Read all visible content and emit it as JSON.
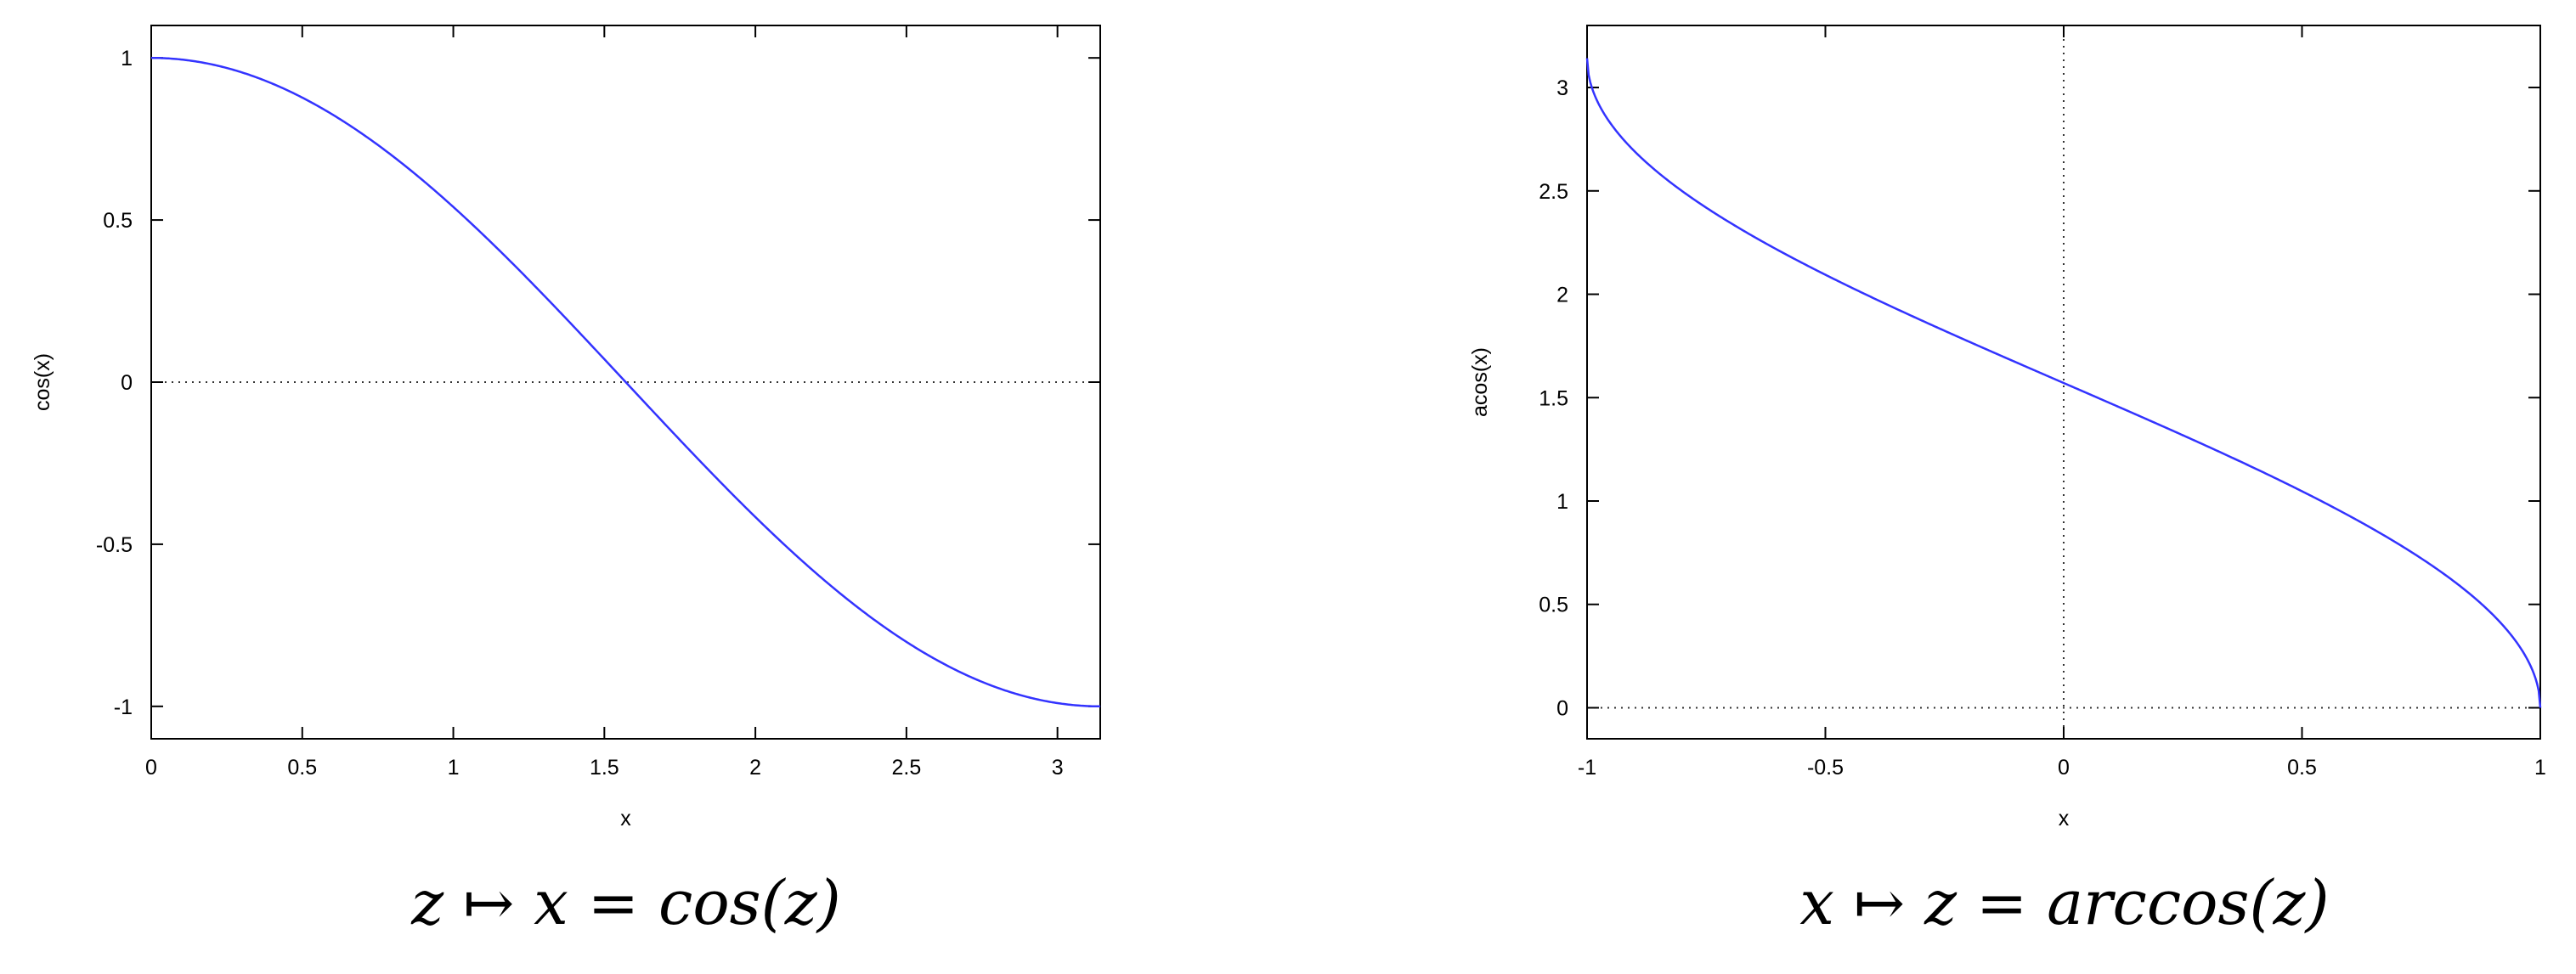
{
  "chart_data": [
    {
      "type": "line",
      "xlabel": "x",
      "ylabel": "cos(x)",
      "caption": "z ↦ x = cos(z)",
      "xlim": [
        0,
        3.14159
      ],
      "ylim": [
        -1.1,
        1.1
      ],
      "xticks": [
        0,
        0.5,
        1,
        1.5,
        2,
        2.5,
        3
      ],
      "xtick_labels": [
        "0",
        "0.5",
        "1",
        "1.5",
        "2",
        "2.5",
        "3"
      ],
      "yticks": [
        1,
        0.5,
        0,
        -0.5,
        -1
      ],
      "ytick_labels": [
        "1",
        "0.5",
        "0",
        "-0.5",
        "-1"
      ],
      "zero_lines": [
        "y=0"
      ],
      "grid": false,
      "line_color": "#3333ff",
      "function": "cos",
      "series": [
        {
          "x": [
            0,
            0.25,
            0.5,
            0.75,
            1.0,
            1.25,
            1.5,
            1.5708,
            1.75,
            2.0,
            2.25,
            2.5,
            2.75,
            3.0,
            3.1416
          ],
          "values": [
            1.0,
            0.969,
            0.878,
            0.732,
            0.54,
            0.315,
            0.071,
            0.0,
            -0.178,
            -0.416,
            -0.628,
            -0.801,
            -0.924,
            -0.99,
            -1.0
          ]
        }
      ]
    },
    {
      "type": "line",
      "xlabel": "x",
      "ylabel": "acos(x)",
      "caption": "x ↦ z = arccos(z)",
      "xlim": [
        -1,
        1
      ],
      "ylim": [
        -0.15,
        3.3
      ],
      "xticks": [
        -1,
        -0.5,
        0,
        0.5,
        1
      ],
      "xtick_labels": [
        "-1",
        "-0.5",
        "0",
        "0.5",
        "1"
      ],
      "yticks": [
        3,
        2.5,
        2,
        1.5,
        1,
        0.5,
        0
      ],
      "ytick_labels": [
        "3",
        "2.5",
        "2",
        "1.5",
        "1",
        "0.5",
        "0"
      ],
      "zero_lines": [
        "y=0",
        "x=0"
      ],
      "grid": false,
      "line_color": "#3333ff",
      "function": "acos",
      "series": [
        {
          "x": [
            -1.0,
            -0.9,
            -0.75,
            -0.5,
            -0.25,
            0.0,
            0.25,
            0.5,
            0.75,
            0.9,
            1.0
          ],
          "values": [
            3.1416,
            2.691,
            2.419,
            2.094,
            1.823,
            1.5708,
            1.318,
            1.047,
            0.723,
            0.451,
            0.0
          ]
        }
      ]
    }
  ]
}
